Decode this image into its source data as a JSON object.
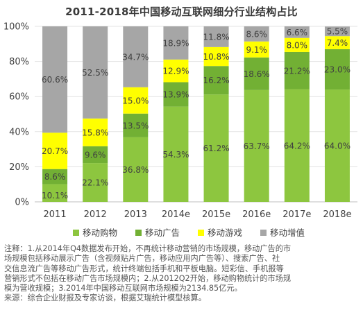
{
  "chart_data": {
    "type": "bar",
    "stacked": true,
    "percent": true,
    "title": "2011-2018年中国移动互联网细分行业结构占比",
    "categories": [
      "2011",
      "2012",
      "2013",
      "2014e",
      "2015e",
      "2016e",
      "2017e",
      "2018e"
    ],
    "ylim": [
      0,
      100
    ],
    "yticks": [
      "0%",
      "20%",
      "40%",
      "60%",
      "80%",
      "100%"
    ],
    "grid": true,
    "legend_position": "bottom",
    "series": [
      {
        "name": "移动购物",
        "color": "#8dc63f",
        "values": [
          10.1,
          22.1,
          36.8,
          54.3,
          61.2,
          63.7,
          64.2,
          64.0
        ]
      },
      {
        "name": "移动广告",
        "color": "#72b034",
        "values": [
          8.6,
          9.6,
          13.5,
          13.9,
          16.2,
          18.6,
          21.2,
          23.0
        ]
      },
      {
        "name": "移动游戏",
        "color": "#ffff00",
        "values": [
          20.7,
          15.8,
          15.0,
          12.9,
          10.8,
          9.1,
          8.0,
          7.4
        ]
      },
      {
        "name": "移动增值",
        "color": "#a6a6a6",
        "values": [
          60.6,
          52.5,
          34.7,
          18.9,
          11.8,
          8.6,
          6.6,
          5.5
        ]
      }
    ],
    "labels": [
      [
        "10.1%",
        "22.1%",
        "36.8%",
        "54.3%",
        "61.2%",
        "63.7%",
        "64.2%",
        "64.0%"
      ],
      [
        "8.6%",
        "9.6%",
        "13.5%",
        "13.9%",
        "16.2%",
        "18.6%",
        "21.2%",
        "23.0%"
      ],
      [
        "20.7%",
        "15.8%",
        "15.0%",
        "12.9%",
        "10.8%",
        "9.1%",
        "8.0%",
        "7.4%"
      ],
      [
        "60.6%",
        "52.5%",
        "34.7%",
        "18.9%",
        "11.8%",
        "8.6%",
        "6.6%",
        "5.5%"
      ]
    ]
  },
  "footnote": {
    "lines": [
      "注释：1.从2014年Q4数据发布开始，不再统计移动营销的市场规模，移动广告的市",
      "场规模包括移动展示广告（含视频贴片广告，移动应用内广告等）、搜索广告、社",
      "交信息流广告等移动广告形式，统计终端包括手机和平板电脑。短彩信、手机报等",
      "营销形式不包括在移动广告市场规模内；2.从2012Q2开始，移动购物统计的市场规",
      "模为营收规模；3.2014年中国移动互联网市场规模为2134.85亿元。",
      "来源：综合企业财报及专家访谈，根据艾瑞统计模型核算。"
    ]
  }
}
